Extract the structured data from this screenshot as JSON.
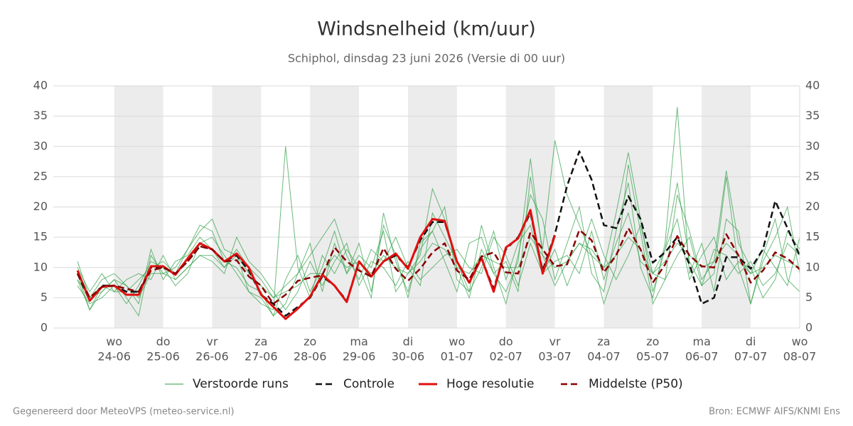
{
  "chart_data": {
    "type": "line",
    "title": "Windsnelheid (km/uur)",
    "subtitle": "Schiphol, dinsdag 23 juni 2026 (Versie di 00 uur)",
    "footer_left": "Gegenereerd door MeteoVPS (meteo-service.nl)",
    "footer_right": "Bron: ECMWF AIFS/KNMI Ens",
    "categories": [
      null,
      null,
      null,
      "wo",
      null,
      null,
      null,
      "do",
      null,
      null,
      null,
      "vr",
      null,
      null,
      null,
      "za",
      null,
      null,
      null,
      "zo",
      null,
      null,
      null,
      "ma",
      null,
      null,
      null,
      "di",
      null,
      null,
      null,
      "wo",
      null,
      null,
      null,
      "do",
      null,
      null,
      null,
      "vr",
      null,
      null,
      null,
      "za",
      null,
      null,
      null,
      "zo",
      null,
      null,
      null,
      "ma",
      null,
      null,
      null,
      "di",
      null,
      null,
      null,
      "wo"
    ],
    "dates": [
      null,
      null,
      null,
      "24-06",
      null,
      null,
      null,
      "25-06",
      null,
      null,
      null,
      "26-06",
      null,
      null,
      null,
      "27-06",
      null,
      null,
      null,
      "28-06",
      null,
      null,
      null,
      "29-06",
      null,
      null,
      null,
      "30-06",
      null,
      null,
      null,
      "01-07",
      null,
      null,
      null,
      "02-07",
      null,
      null,
      null,
      "03-07",
      null,
      null,
      null,
      "04-07",
      null,
      null,
      null,
      "05-07",
      null,
      null,
      null,
      "06-07",
      null,
      null,
      null,
      "07-07",
      null,
      null,
      null,
      "08-07"
    ],
    "ylim": [
      0,
      40
    ],
    "yticks": [
      0,
      5,
      10,
      15,
      20,
      25,
      30,
      35,
      40
    ],
    "grid": true,
    "mirror_y_axis": true,
    "shade_alternate_days": true,
    "legend": "bottom",
    "series": [
      {
        "name": "Verstoorde runs",
        "color": "#2e9e44",
        "members": [
          [
            8,
            3,
            6,
            8,
            5,
            2,
            12,
            9,
            10,
            13,
            16,
            18,
            13,
            12,
            6,
            5,
            2,
            8,
            12,
            6,
            10,
            16,
            9,
            14,
            6,
            17,
            12,
            5,
            14,
            16,
            20,
            8,
            6,
            17,
            10,
            4,
            12,
            22,
            18,
            8,
            14,
            20,
            9,
            6,
            16,
            24,
            10,
            5,
            14,
            36.5,
            9,
            14,
            6,
            18,
            16,
            4,
            12,
            18,
            8,
            6
          ],
          [
            10,
            6,
            9,
            6,
            8,
            9,
            8,
            12,
            8,
            10,
            12,
            11,
            9,
            15,
            11,
            9,
            6,
            3,
            6,
            11,
            7,
            11,
            14,
            7,
            11,
            10,
            7,
            11,
            8,
            10,
            12,
            13,
            10,
            9,
            15,
            12,
            7,
            14,
            9,
            13,
            7,
            12,
            18,
            12,
            8,
            12,
            17,
            9,
            8,
            12,
            15,
            7,
            13,
            12,
            9,
            11,
            7,
            9,
            14,
            12
          ],
          [
            7,
            4,
            5,
            7,
            4,
            7,
            11,
            10,
            7,
            9,
            14,
            15,
            12,
            9,
            6,
            4,
            3,
            30,
            10,
            5,
            12,
            9,
            13,
            10,
            5,
            19,
            11,
            6,
            13,
            16,
            11,
            6,
            14,
            15,
            9,
            6,
            11,
            28,
            12,
            7,
            11,
            14,
            12,
            4,
            10,
            27,
            16,
            4,
            8,
            22,
            16,
            8,
            11,
            26,
            14,
            10,
            5,
            8,
            16,
            13
          ],
          [
            11,
            5,
            8,
            9,
            7,
            4,
            13,
            8,
            11,
            12,
            15,
            13,
            10,
            13,
            10,
            8,
            5,
            7,
            9,
            12,
            15,
            18,
            12,
            8,
            13,
            11,
            15,
            10,
            7,
            19,
            15,
            11,
            6,
            10,
            16,
            8,
            14,
            17,
            9,
            11,
            12,
            9,
            16,
            8,
            14,
            19,
            11,
            9,
            13,
            18,
            8,
            12,
            15,
            8,
            11,
            9,
            13,
            10,
            7,
            15
          ],
          [
            9,
            3,
            7,
            6,
            6,
            8,
            10,
            11,
            9,
            13,
            17,
            16,
            11,
            10,
            7,
            6,
            2,
            4,
            9,
            14,
            6,
            14,
            9,
            12,
            10,
            16,
            6,
            9,
            12,
            23,
            18,
            10,
            5,
            13,
            9,
            11,
            6,
            25,
            13,
            31,
            22,
            17,
            12,
            10,
            19,
            29,
            18,
            6,
            13,
            24,
            11,
            7,
            9,
            25,
            10,
            4,
            11,
            15,
            20,
            9
          ],
          [
            8,
            5,
            6,
            8,
            7,
            5,
            9,
            9,
            8,
            10,
            12,
            12,
            10,
            12,
            9,
            7,
            5,
            6,
            7,
            9,
            9,
            12,
            10,
            11,
            9,
            12,
            10,
            9,
            11,
            14,
            13,
            10,
            9,
            12,
            11,
            10,
            10,
            15,
            12,
            10,
            11,
            14,
            13,
            10,
            12,
            15,
            13,
            9,
            11,
            14,
            12,
            10,
            11,
            14,
            12,
            9,
            10,
            12,
            11,
            10
          ]
        ]
      },
      {
        "name": "Controle",
        "color": "#111111",
        "dashed": true,
        "values": [
          9,
          4.5,
          7,
          7,
          6,
          6,
          10,
          10,
          9,
          11,
          13.5,
          13,
          11,
          12,
          9.5,
          5.5,
          4,
          2,
          3.5,
          5,
          8.5,
          7,
          4.5,
          11,
          8.5,
          11,
          12,
          10,
          14.5,
          17.5,
          17.5,
          11,
          7.5,
          11.5,
          6.5,
          13,
          15,
          19,
          9.5,
          15.5,
          23.5,
          29.2,
          24.5,
          17,
          16.5,
          21.8,
          18,
          10.8,
          12.5,
          15,
          10.5,
          4,
          5,
          11.7,
          11.7,
          9.8,
          13,
          21,
          16.5,
          12
        ]
      },
      {
        "name": "Hoge resolutie",
        "color": "#e01010",
        "values": [
          9.5,
          4.5,
          6.8,
          7,
          5.5,
          5.5,
          10.2,
          10.2,
          8.8,
          11.5,
          14,
          13,
          11,
          12.3,
          10,
          5.5,
          3.5,
          1.5,
          3.2,
          5.2,
          8.8,
          7,
          4.3,
          11,
          8.5,
          11,
          12.3,
          9.8,
          15,
          18,
          17.7,
          11,
          7.5,
          11.6,
          6,
          13.3,
          14.8,
          19.5,
          9,
          15.3,
          null,
          null,
          null,
          null,
          null,
          null,
          null,
          null,
          null,
          null,
          null,
          null,
          null,
          null,
          null,
          null,
          null,
          null,
          null,
          null
        ]
      },
      {
        "name": "Middelste (P50)",
        "color": "#8b0000",
        "dashed": true,
        "values": [
          9,
          5,
          6.8,
          7,
          6.5,
          6,
          9.5,
          10,
          9,
          11,
          13.5,
          13,
          11,
          11.2,
          8.5,
          7,
          4,
          5.5,
          7.8,
          8.3,
          8.7,
          13.3,
          11,
          9.5,
          8.5,
          13.2,
          9.8,
          7.8,
          9.8,
          12.5,
          14,
          9.5,
          8,
          11.8,
          12.5,
          9.2,
          9,
          15.8,
          13,
          10.2,
          10.5,
          16.2,
          14.5,
          9.2,
          12,
          16.5,
          13,
          7.5,
          10.5,
          15.2,
          12,
          10.2,
          10,
          15.5,
          12,
          7.5,
          9.5,
          12.5,
          11.5,
          9.7
        ]
      }
    ]
  }
}
